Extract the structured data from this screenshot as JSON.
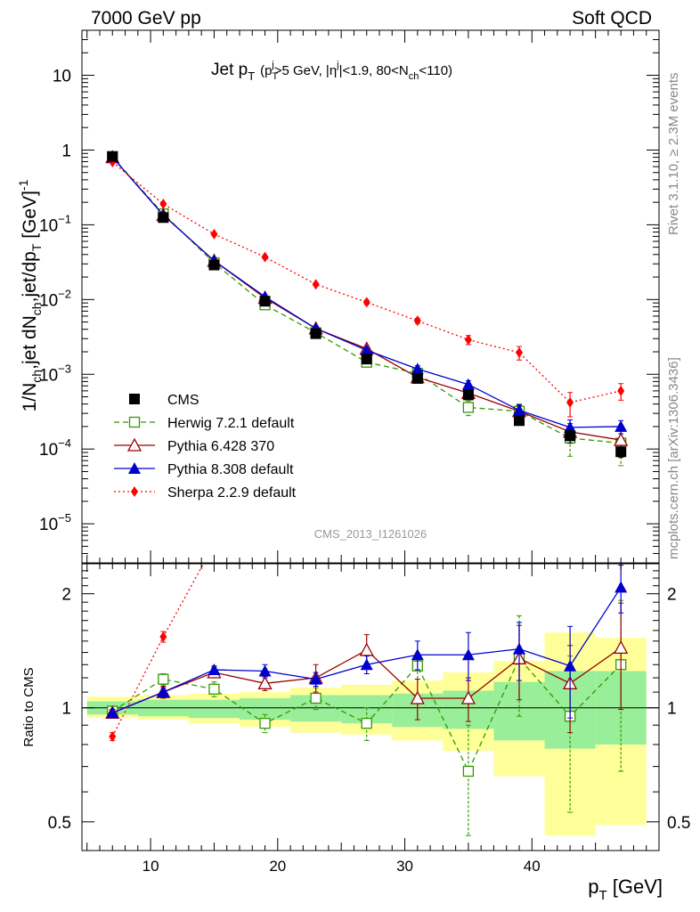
{
  "header": {
    "left": "7000 GeV pp",
    "right": "Soft QCD"
  },
  "side_labels": {
    "rivet": "Rivet 3.1.10, ≥ 2.3M events",
    "mcplots": "mcplots.cern.ch [arXiv:1306.3436]"
  },
  "watermark": "CMS_2013_I1261026",
  "chart_data": [
    {
      "type": "line",
      "title_parts": {
        "main": "Jet p",
        "main_sub": "T",
        "cut_open": "(p",
        "cut_sub": "T",
        "cut_sup": "j",
        "cut_rest": ">5 GeV, |η",
        "eta_sup": "j",
        "eta_rest": "|<1.9, 80<N",
        "nch_sub": "ch",
        "close": "<110)"
      },
      "ylabel_parts": {
        "a": "1/N",
        "a_sub": "ch",
        "b": ",jet dN",
        "b_sub": "ch",
        "c": ",jet/dp",
        "c_sub": "T",
        "d": " [GeV]",
        "d_sup": "-1"
      },
      "ylog": true,
      "xlim": [
        4.6,
        50
      ],
      "ylim": [
        3e-06,
        40
      ],
      "y_ticks": [
        {
          "value": 10,
          "mant": "10",
          "exp": ""
        },
        {
          "value": 1,
          "mant": "1",
          "exp": ""
        },
        {
          "value": 0.1,
          "mant": "10",
          "exp": "−1"
        },
        {
          "value": 0.01,
          "mant": "10",
          "exp": "−2"
        },
        {
          "value": 0.001,
          "mant": "10",
          "exp": "−3"
        },
        {
          "value": 0.0001,
          "mant": "10",
          "exp": "−4"
        },
        {
          "value": 1e-05,
          "mant": "10",
          "exp": "−5"
        }
      ],
      "x": [
        7,
        11,
        15,
        19,
        23,
        27,
        31,
        35,
        39,
        43,
        47
      ],
      "series": [
        {
          "name": "CMS",
          "color": "#000000",
          "marker": "filled-square",
          "line": "none",
          "values": [
            0.82,
            0.125,
            0.029,
            0.0095,
            0.0035,
            0.0016,
            0.00088,
            0.00053,
            0.00024,
            0.00015,
            9.2e-05
          ],
          "err": [
            0.03,
            0.006,
            0.0015,
            0.0005,
            0.0002,
            0.00012,
            8e-05,
            6e-05,
            3e-05,
            3e-05,
            1.5e-05
          ]
        },
        {
          "name": "Herwig 7.2.1 default",
          "color": "#339900",
          "marker": "open-square",
          "line": "dashed",
          "values": [
            0.81,
            0.14,
            0.031,
            0.0085,
            0.0036,
            0.00145,
            0.00103,
            0.00036,
            0.00032,
            0.00014,
            0.00012
          ],
          "err": [
            0.02,
            0.006,
            0.002,
            0.0006,
            0.0003,
            0.00015,
            0.00012,
            8e-05,
            8e-05,
            6e-05,
            6e-05
          ]
        },
        {
          "name": "Pythia 6.428 370",
          "color": "#990000",
          "marker": "open-triangle",
          "line": "solid",
          "values": [
            0.8,
            0.135,
            0.033,
            0.0105,
            0.0041,
            0.0022,
            0.00091,
            0.00056,
            0.00032,
            0.00017,
            0.000132
          ],
          "err": [
            0.02,
            0.006,
            0.002,
            0.0006,
            0.0003,
            0.00015,
            0.00012,
            8e-05,
            6e-05,
            5e-05,
            5e-05
          ]
        },
        {
          "name": "Pythia 8.308 default",
          "color": "#0000cc",
          "marker": "filled-triangle",
          "line": "solid",
          "values": [
            0.8,
            0.135,
            0.033,
            0.0109,
            0.0041,
            0.0021,
            0.00118,
            0.00073,
            0.00033,
            0.000195,
            0.0002
          ],
          "err": [
            0.02,
            0.006,
            0.002,
            0.0006,
            0.0003,
            0.00015,
            0.00012,
            9e-05,
            6e-05,
            5e-05,
            4e-05
          ]
        },
        {
          "name": "Sherpa 2.2.9 default",
          "color": "#ff0000",
          "marker": "filled-diamond",
          "line": "dotted",
          "values": [
            0.69,
            0.19,
            0.075,
            0.037,
            0.016,
            0.0092,
            0.0052,
            0.0029,
            0.00195,
            0.00042,
            0.0006
          ],
          "err": [
            0.02,
            0.008,
            0.003,
            0.0015,
            0.0008,
            0.0006,
            0.0004,
            0.0004,
            0.0004,
            0.00015,
            0.00015
          ]
        }
      ]
    },
    {
      "type": "line",
      "ylabel": "Ratio to CMS",
      "xlabel_parts": {
        "main": "p",
        "sub": "T",
        "rest": " [GeV]"
      },
      "ylog": true,
      "xlim": [
        4.6,
        50
      ],
      "ylim": [
        0.42,
        2.4
      ],
      "x_ticks": [
        10,
        20,
        30,
        40
      ],
      "y_ticks": [
        0.5,
        1,
        2
      ],
      "x": [
        7,
        11,
        15,
        19,
        23,
        27,
        31,
        35,
        39,
        43,
        47
      ],
      "bands": {
        "x_edges": [
          5,
          9,
          13,
          17,
          21,
          25,
          29,
          33,
          37,
          41,
          45,
          49
        ],
        "inner_low": [
          0.96,
          0.95,
          0.94,
          0.93,
          0.92,
          0.91,
          0.89,
          0.88,
          0.82,
          0.78,
          0.8
        ],
        "inner_high": [
          1.04,
          1.05,
          1.05,
          1.06,
          1.08,
          1.08,
          1.09,
          1.11,
          1.17,
          1.25,
          1.25
        ],
        "outer_low": [
          0.94,
          0.93,
          0.91,
          0.89,
          0.86,
          0.85,
          0.82,
          0.77,
          0.66,
          0.46,
          0.49
        ],
        "outer_high": [
          1.07,
          1.08,
          1.09,
          1.1,
          1.13,
          1.15,
          1.18,
          1.24,
          1.33,
          1.58,
          1.53
        ]
      },
      "series": [
        {
          "name": "Herwig 7.2.1 default",
          "color": "#339900",
          "marker": "open-square",
          "line": "dashed",
          "values": [
            0.98,
            1.19,
            1.12,
            0.91,
            1.06,
            0.91,
            1.29,
            0.68,
            1.35,
            0.95,
            1.3
          ],
          "err": [
            0.02,
            0.04,
            0.05,
            0.05,
            0.07,
            0.09,
            0.1,
            0.22,
            0.4,
            0.42,
            0.62
          ]
        },
        {
          "name": "Pythia 6.428 370",
          "color": "#990000",
          "marker": "open-triangle",
          "line": "solid",
          "values": [
            0.97,
            1.1,
            1.24,
            1.16,
            1.2,
            1.42,
            1.06,
            1.06,
            1.35,
            1.16,
            1.44
          ],
          "err": [
            0.02,
            0.04,
            0.04,
            0.05,
            0.1,
            0.14,
            0.13,
            0.14,
            0.3,
            0.3,
            0.45
          ]
        },
        {
          "name": "Pythia 8.308 default",
          "color": "#0000cc",
          "marker": "filled-triangle",
          "line": "solid",
          "values": [
            0.97,
            1.1,
            1.26,
            1.25,
            1.19,
            1.3,
            1.38,
            1.38,
            1.43,
            1.29,
            2.08
          ],
          "err": [
            0.02,
            0.03,
            0.03,
            0.05,
            0.05,
            0.07,
            0.12,
            0.2,
            0.25,
            0.35,
            0.3
          ]
        },
        {
          "name": "Sherpa 2.2.9 default",
          "color": "#ff0000",
          "marker": "filled-diamond",
          "line": "dotted",
          "values": [
            0.84,
            1.54,
            2.7,
            null,
            null,
            null,
            null,
            null,
            null,
            null,
            null
          ],
          "err": [
            0.02,
            0.05,
            0.1,
            null,
            null,
            null,
            null,
            null,
            null,
            null,
            null
          ]
        }
      ]
    }
  ]
}
